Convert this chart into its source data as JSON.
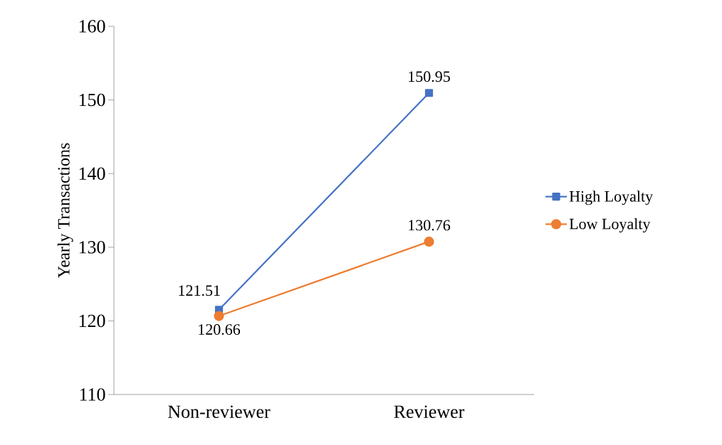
{
  "chart_data": {
    "type": "line",
    "ylabel": "Yearly Transactions",
    "categories": [
      "Non-reviewer",
      "Reviewer"
    ],
    "series": [
      {
        "name": "High Loyalty",
        "color": "#4472c4",
        "values": [
          121.51,
          150.95
        ],
        "marker": "square"
      },
      {
        "name": "Low Loyalty",
        "color": "#ed7d31",
        "values": [
          120.66,
          130.76
        ],
        "marker": "circle"
      }
    ],
    "ylim": [
      110,
      160
    ],
    "yticks": [
      110,
      120,
      130,
      140,
      150,
      160
    ],
    "data_labels": true,
    "legend": "right",
    "line_style": "solid"
  }
}
